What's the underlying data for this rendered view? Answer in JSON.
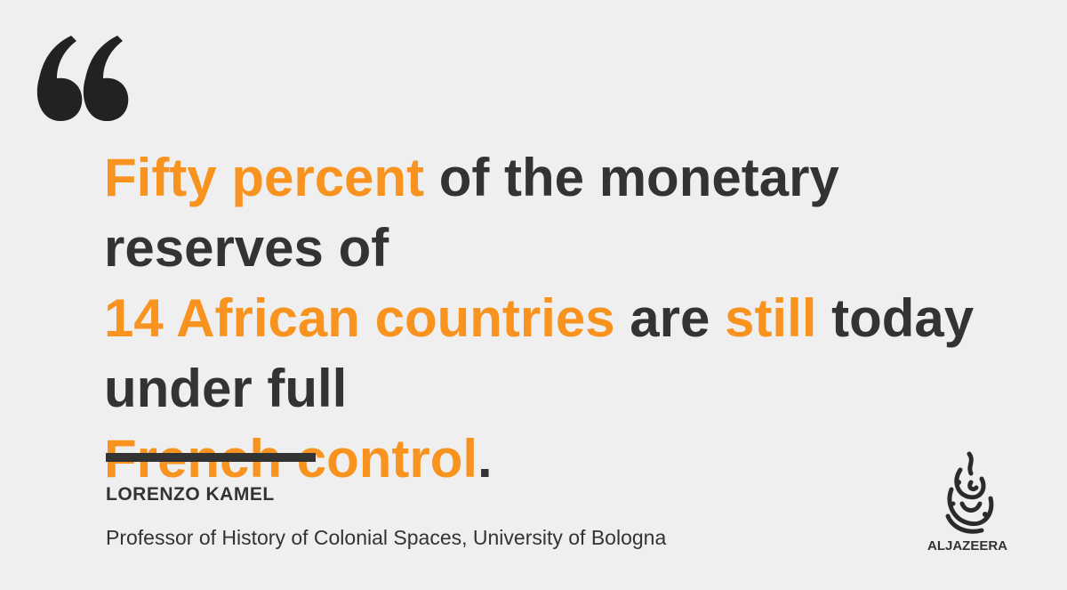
{
  "quote": {
    "segments": [
      {
        "text": "Fifty percent",
        "highlight": true
      },
      {
        "text": " of the monetary reserves of ",
        "highlight": false
      },
      {
        "text": "14 African countries",
        "highlight": true
      },
      {
        "text": " are ",
        "highlight": false
      },
      {
        "text": "still",
        "highlight": true
      },
      {
        "text": " today under full ",
        "highlight": false
      },
      {
        "text": "French control",
        "highlight": true
      },
      {
        "text": ".",
        "highlight": false
      }
    ]
  },
  "author": {
    "name": "LORENZO KAMEL",
    "title": "Professor of History of Colonial Spaces, University of Bologna"
  },
  "brand": {
    "logo_text": "ALJAZEERA"
  },
  "colors": {
    "background": "#efefef",
    "text": "#333333",
    "accent": "#f7931e"
  },
  "icons": {
    "quote": "quotation-mark-icon",
    "logo": "aljazeera-logo-icon"
  }
}
